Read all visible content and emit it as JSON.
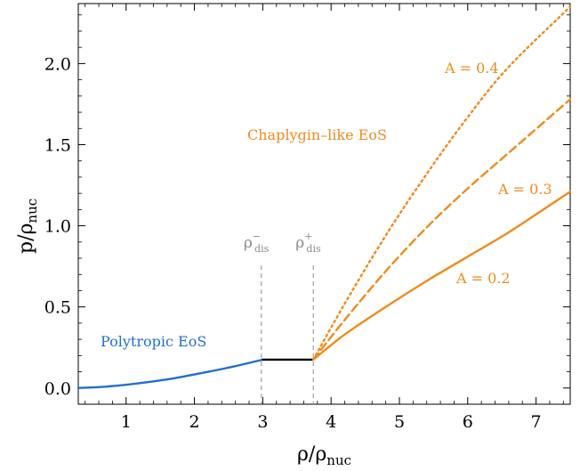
{
  "chart_data": {
    "type": "line",
    "xlabel": "ρ/ρ",
    "xlabel_sub": "nuc",
    "ylabel": "p/ρ",
    "ylabel_sub": "nuc",
    "xlim": [
      0.3,
      7.5
    ],
    "ylim": [
      -0.1,
      2.37
    ],
    "x_ticks": [
      "1",
      "2",
      "3",
      "4",
      "5",
      "6",
      "7"
    ],
    "y_ticks": [
      "0.0",
      "0.5",
      "1.0",
      "1.5",
      "2.0"
    ],
    "x_tick_values": [
      1,
      2,
      3,
      4,
      5,
      6,
      7
    ],
    "y_tick_values": [
      0.0,
      0.5,
      1.0,
      1.5,
      2.0
    ],
    "grid": false,
    "colors": {
      "polytropic": "#1f6fd6",
      "chaplygin": "#f28a1a",
      "plateau": "#000000",
      "marker": "#8c8c8c"
    },
    "series": [
      {
        "name": "Polytropic EoS",
        "style": "solid",
        "x": [
          0.3,
          0.7,
          1.2,
          1.7,
          2.2,
          2.6,
          3.0
        ],
        "y": [
          0.0,
          0.008,
          0.03,
          0.06,
          0.1,
          0.135,
          0.175
        ]
      },
      {
        "style": "solid",
        "x": [
          3.0,
          3.74
        ],
        "y": [
          0.175,
          0.175
        ]
      },
      {
        "name": "A = 0.2",
        "style": "solid",
        "x": [
          3.74,
          4.2,
          4.8,
          5.4,
          6.0,
          6.6,
          7.5
        ],
        "y": [
          0.175,
          0.33,
          0.5,
          0.66,
          0.81,
          0.96,
          1.21
        ]
      },
      {
        "name": "A = 0.3",
        "style": "dashed",
        "x": [
          3.74,
          4.2,
          4.8,
          5.4,
          6.0,
          6.6,
          7.5
        ],
        "y": [
          0.175,
          0.42,
          0.72,
          0.99,
          1.23,
          1.45,
          1.78
        ]
      },
      {
        "name": "A = 0.4",
        "style": "dotted",
        "x": [
          3.74,
          4.2,
          4.8,
          5.4,
          6.0,
          6.6,
          7.5
        ],
        "y": [
          0.175,
          0.52,
          0.94,
          1.32,
          1.67,
          1.98,
          2.35
        ]
      }
    ],
    "markers": [
      {
        "x": 2.98,
        "label": "ρ",
        "sup": "−",
        "sub": "dis"
      },
      {
        "x": 3.74,
        "label": "ρ",
        "sup": "+",
        "sub": "dis"
      }
    ],
    "annotations": [
      {
        "text": "Polytropic EoS",
        "color": "#1f6fd6"
      },
      {
        "text": "Chaplygin–like EoS",
        "color": "#f28a1a"
      },
      {
        "text": "A = 0.4",
        "color": "#f28a1a"
      },
      {
        "text": "A = 0.3",
        "color": "#f28a1a"
      },
      {
        "text": "A = 0.2",
        "color": "#f28a1a"
      }
    ]
  }
}
